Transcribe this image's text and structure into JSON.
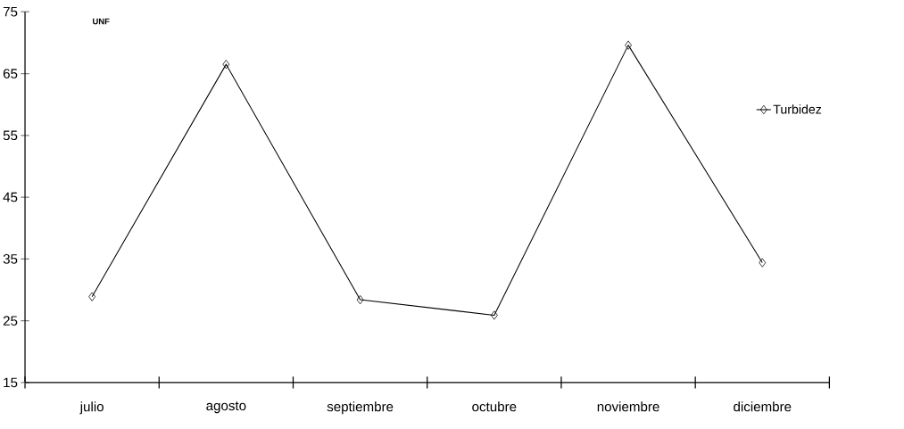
{
  "chart_data": {
    "type": "line",
    "ylabel": "UNF",
    "categories": [
      "julio",
      "agosto",
      "septiembre",
      "octubre",
      "noviembre",
      "diciembre"
    ],
    "series": [
      {
        "name": "Turbidez",
        "color": "#000000",
        "values": [
          28.9,
          66.5,
          28.4,
          25.9,
          69.6,
          34.4
        ]
      }
    ],
    "ylim": [
      15,
      75
    ],
    "yticks": [
      15,
      25,
      35,
      45,
      55,
      65,
      75
    ],
    "legend": "right",
    "marker": "diamond",
    "line_style": "solid"
  }
}
